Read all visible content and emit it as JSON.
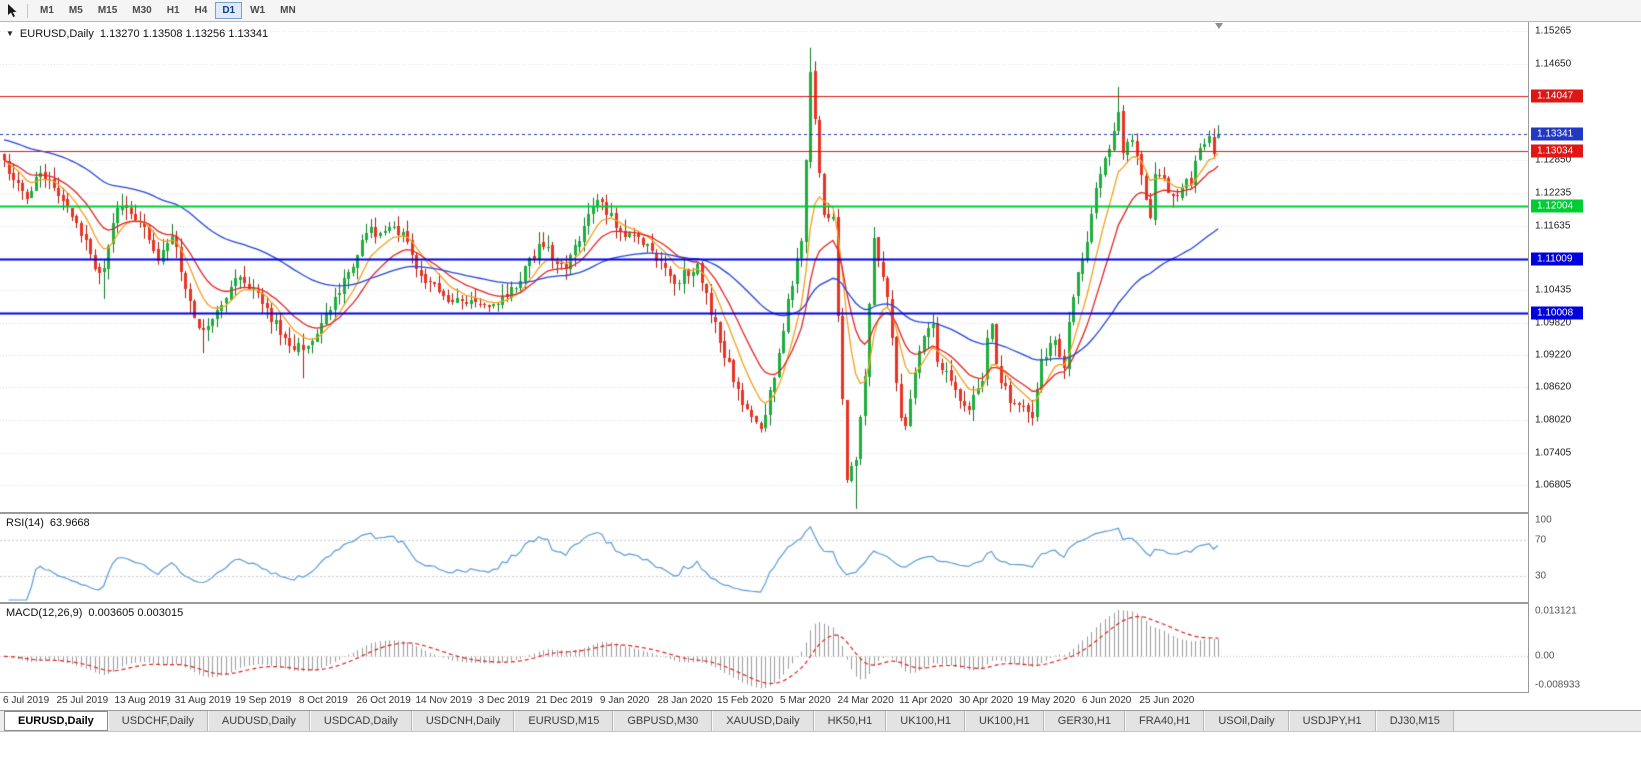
{
  "toolbar": {
    "timeframes": [
      {
        "label": "M1",
        "active": false
      },
      {
        "label": "M5",
        "active": false
      },
      {
        "label": "M15",
        "active": false
      },
      {
        "label": "M30",
        "active": false
      },
      {
        "label": "H1",
        "active": false
      },
      {
        "label": "H4",
        "active": false
      },
      {
        "label": "D1",
        "active": true
      },
      {
        "label": "W1",
        "active": false
      },
      {
        "label": "MN",
        "active": false
      }
    ]
  },
  "chart": {
    "title_symbol": "EURUSD,Daily",
    "title_ohlc": "1.13270 1.13508 1.13256 1.13341",
    "price_axis_labels": [
      "1.15265",
      "1.14650",
      "1.12850",
      "1.12235",
      "1.11635",
      "1.10435",
      "1.09820",
      "1.09220",
      "1.08620",
      "1.08020",
      "1.07405",
      "1.06805"
    ],
    "levels": [
      {
        "label": "1.14047",
        "value": 1.14047,
        "color": "#e01515",
        "width": 1
      },
      {
        "label": "1.13034",
        "value": 1.13034,
        "color": "#e01515",
        "width": 1
      },
      {
        "label": "1.12004",
        "value": 1.12004,
        "color": "#00cc33",
        "width": 2
      },
      {
        "label": "1.11009",
        "value": 1.11009,
        "color": "#0000dd",
        "width": 2
      },
      {
        "label": "1.10008",
        "value": 1.10008,
        "color": "#0000dd",
        "width": 2
      }
    ],
    "current_price": {
      "label": "1.13341",
      "value": 1.13341,
      "color": "#2238c4"
    }
  },
  "rsi_panel": {
    "name_label": "RSI(14)",
    "value_label": "63.9668",
    "axis_labels": [
      "100",
      "70",
      "30"
    ],
    "levels": [
      70,
      30
    ],
    "line_color": "#5b9bd5"
  },
  "macd_panel": {
    "name_label": "MACD(12,26,9)",
    "values_label": "0.003605 0.003015",
    "axis_top_label": "0.013121",
    "axis_zero_label": "0.00",
    "axis_bottom_label": "-0.008933",
    "hist_color": "#9a9a9a",
    "signal_color": "#e02020"
  },
  "date_axis_labels": [
    "6 Jul 2019",
    "25 Jul 2019",
    "13 Aug 2019",
    "31 Aug 2019",
    "19 Sep 2019",
    "8 Oct 2019",
    "26 Oct 2019",
    "14 Nov 2019",
    "3 Dec 2019",
    "21 Dec 2019",
    "9 Jan 2020",
    "28 Jan 2020",
    "15 Feb 2020",
    "5 Mar 2020",
    "24 Mar 2020",
    "11 Apr 2020",
    "30 Apr 2020",
    "19 May 2020",
    "6 Jun 2020",
    "25 Jun 2020"
  ],
  "tabs": [
    {
      "label": "EURUSD,Daily",
      "active": true
    },
    {
      "label": "USDCHF,Daily",
      "active": false
    },
    {
      "label": "AUDUSD,Daily",
      "active": false
    },
    {
      "label": "USDCAD,Daily",
      "active": false
    },
    {
      "label": "USDCNH,Daily",
      "active": false
    },
    {
      "label": "EURUSD,M15",
      "active": false
    },
    {
      "label": "GBPUSD,M30",
      "active": false
    },
    {
      "label": "XAUUSD,Daily",
      "active": false
    },
    {
      "label": "HK50,H1",
      "active": false
    },
    {
      "label": "UK100,H1",
      "active": false
    },
    {
      "label": "UK100,H1",
      "active": false
    },
    {
      "label": "GER30,H1",
      "active": false
    },
    {
      "label": "FRA40,H1",
      "active": false
    },
    {
      "label": "USOil,Daily",
      "active": false
    },
    {
      "label": "USDJPY,H1",
      "active": false
    },
    {
      "label": "DJ30,M15",
      "active": false
    }
  ],
  "chart_data": {
    "type": "candlestick",
    "symbol": "EURUSD",
    "timeframe": "Daily",
    "candle_count": 269,
    "price_range": [
      1.063,
      1.1543
    ],
    "last_candle": {
      "open": 1.1327,
      "high": 1.13508,
      "low": 1.13256,
      "close": 1.13341
    },
    "close_anchors": [
      [
        0,
        1.1285
      ],
      [
        5,
        1.1213
      ],
      [
        8,
        1.1262
      ],
      [
        13,
        1.121
      ],
      [
        17,
        1.1145
      ],
      [
        21,
        1.1075
      ],
      [
        22,
        1.1085
      ],
      [
        25,
        1.1196
      ],
      [
        30,
        1.117
      ],
      [
        34,
        1.1098
      ],
      [
        37,
        1.1145
      ],
      [
        42,
        1.0992
      ],
      [
        44,
        1.097
      ],
      [
        52,
        1.1068
      ],
      [
        57,
        1.1017
      ],
      [
        63,
        1.094
      ],
      [
        66,
        1.0932
      ],
      [
        74,
        1.1038
      ],
      [
        80,
        1.115
      ],
      [
        88,
        1.1152
      ],
      [
        92,
        1.107
      ],
      [
        98,
        1.1022
      ],
      [
        104,
        1.1021
      ],
      [
        109,
        1.1018
      ],
      [
        114,
        1.106
      ],
      [
        118,
        1.113
      ],
      [
        124,
        1.1082
      ],
      [
        131,
        1.1212
      ],
      [
        136,
        1.1153
      ],
      [
        141,
        1.1128
      ],
      [
        146,
        1.1085
      ],
      [
        148,
        1.1055
      ],
      [
        153,
        1.1093
      ],
      [
        158,
        1.0945
      ],
      [
        163,
        1.083
      ],
      [
        167,
        1.0785
      ],
      [
        170,
        1.088
      ],
      [
        173,
        1.1026
      ],
      [
        176,
        1.1135
      ],
      [
        178,
        1.145
      ],
      [
        181,
        1.1184
      ],
      [
        183,
        1.118
      ],
      [
        184,
        1.0995
      ],
      [
        186,
        1.069
      ],
      [
        188,
        1.0727
      ],
      [
        190,
        1.0883
      ],
      [
        192,
        1.114
      ],
      [
        195,
        1.103
      ],
      [
        198,
        1.0805
      ],
      [
        199,
        1.079
      ],
      [
        202,
        1.093
      ],
      [
        205,
        1.098
      ],
      [
        206,
        1.091
      ],
      [
        210,
        1.0857
      ],
      [
        213,
        1.082
      ],
      [
        216,
        1.0875
      ],
      [
        217,
        1.0955
      ],
      [
        218,
        1.098
      ],
      [
        219,
        1.0905
      ],
      [
        222,
        1.0833
      ],
      [
        226,
        1.0817
      ],
      [
        227,
        1.0805
      ],
      [
        229,
        1.0915
      ],
      [
        232,
        1.095
      ],
      [
        234,
        1.0898
      ],
      [
        235,
        1.0984
      ],
      [
        237,
        1.1077
      ],
      [
        238,
        1.1101
      ],
      [
        239,
        1.1134
      ],
      [
        241,
        1.1234
      ],
      [
        243,
        1.129
      ],
      [
        245,
        1.134
      ],
      [
        246,
        1.1375
      ],
      [
        247,
        1.1298
      ],
      [
        249,
        1.1323
      ],
      [
        253,
        1.1177
      ],
      [
        254,
        1.126
      ],
      [
        256,
        1.125
      ],
      [
        258,
        1.1219
      ],
      [
        260,
        1.1234
      ],
      [
        261,
        1.125
      ],
      [
        262,
        1.124
      ],
      [
        264,
        1.1308
      ],
      [
        266,
        1.133
      ],
      [
        267,
        1.1297
      ],
      [
        268,
        1.13341
      ]
    ],
    "wick_overrides": [
      [
        22,
        "low",
        1.1027
      ],
      [
        44,
        "low",
        1.0926
      ],
      [
        66,
        "low",
        1.0879
      ],
      [
        167,
        "low",
        1.0778
      ],
      [
        178,
        "high",
        1.1495
      ],
      [
        188,
        "low",
        1.0636
      ],
      [
        246,
        "high",
        1.1422
      ]
    ],
    "up_fill": "#1fae3d",
    "up_stroke": "#0c7a24",
    "down_fill": "#ea3222",
    "down_stroke": "#b01b0d",
    "moving_averages": [
      {
        "type": "ema",
        "period": 8,
        "color": "#f0a020"
      },
      {
        "type": "ema",
        "period": 16,
        "color": "#e02424"
      },
      {
        "type": "ema",
        "period": 55,
        "color": "#2546d6"
      }
    ],
    "rsi_period": 14,
    "macd_params": [
      12,
      26,
      9
    ],
    "macd_range": [
      -0.008933,
      0.013121
    ],
    "grid_color": "#dadada"
  }
}
